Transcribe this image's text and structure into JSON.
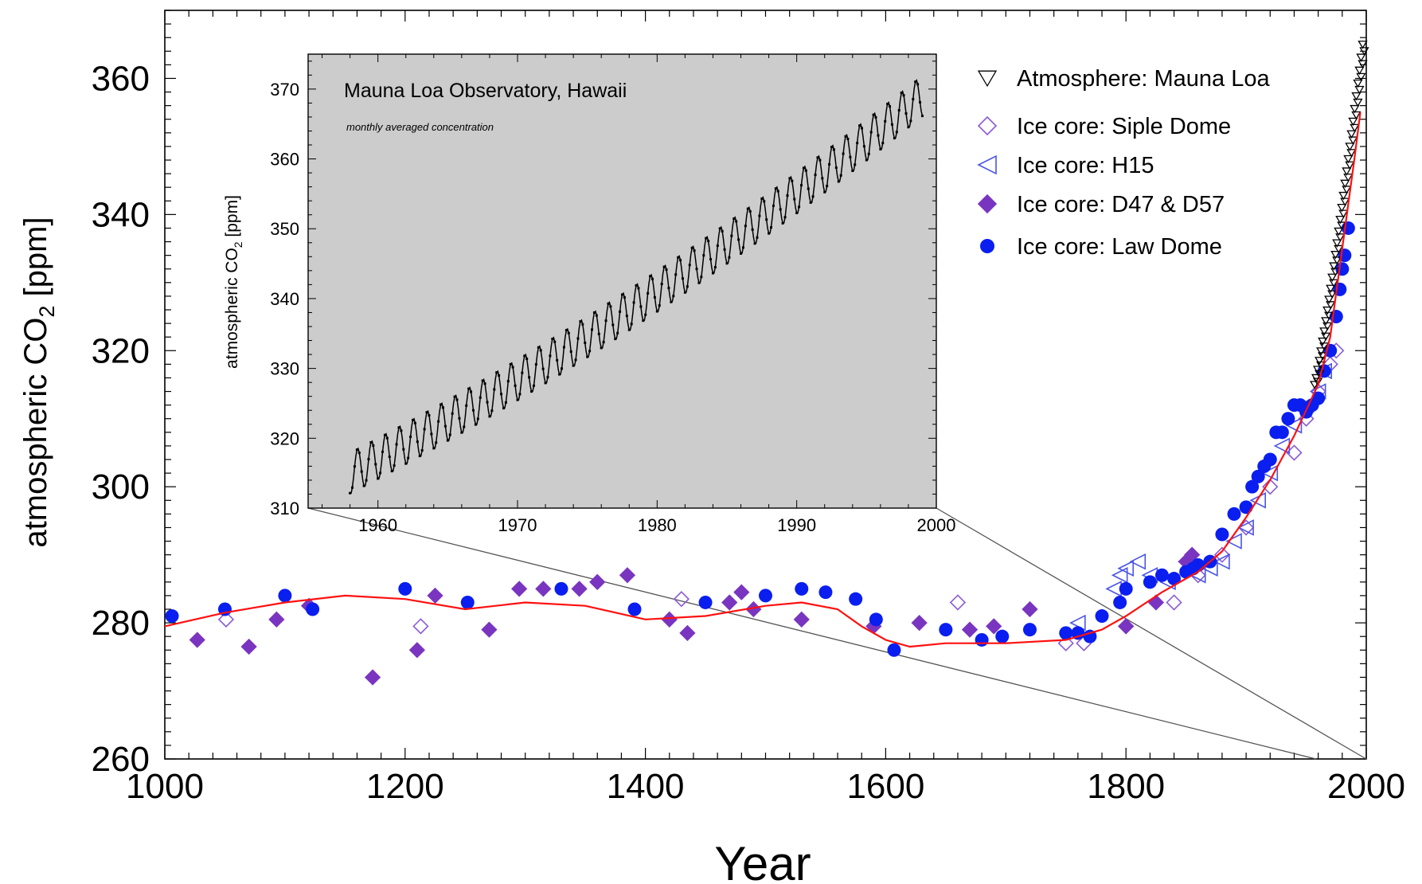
{
  "chart_data": [
    {
      "type": "scatter",
      "title": "",
      "xlabel": "Year",
      "ylabel": "atmospheric CO",
      "ylabel_sub": "2",
      "ylabel_unit": " [ppm]",
      "xlim": [
        1000,
        2000
      ],
      "ylim": [
        260,
        370
      ],
      "xticks": [
        1000,
        1200,
        1400,
        1600,
        1800,
        2000
      ],
      "yticks": [
        260,
        280,
        300,
        320,
        340,
        360
      ],
      "legend_position": "top-right",
      "legend": [
        {
          "label": "Atmosphere: Mauna Loa",
          "marker": "triangle-down-open",
          "color": "#000000"
        },
        {
          "label": "Ice core: Siple Dome",
          "marker": "diamond-open",
          "color": "#8a5bd6"
        },
        {
          "label": "Ice core: H15",
          "marker": "triangle-left-open",
          "color": "#4a55e8"
        },
        {
          "label": "Ice core: D47 & D57",
          "marker": "diamond-filled",
          "color": "#7a35c0"
        },
        {
          "label": "Ice core: Law Dome",
          "marker": "circle-filled",
          "color": "#0a1ef0"
        }
      ],
      "series": [
        {
          "name": "Ice core: Law Dome",
          "marker": "circle-filled",
          "color": "#0a1ef0",
          "x": [
            1006,
            1050,
            1100,
            1123,
            1200,
            1252,
            1330,
            1391,
            1450,
            1500,
            1530,
            1550,
            1575,
            1592,
            1607,
            1650,
            1680,
            1697,
            1720,
            1750,
            1760,
            1770,
            1780,
            1795,
            1800,
            1820,
            1830,
            1840,
            1850,
            1856,
            1860,
            1870,
            1880,
            1890,
            1900,
            1905,
            1910,
            1915,
            1920,
            1925,
            1930,
            1935,
            1940,
            1945,
            1950,
            1955,
            1960,
            1965,
            1970,
            1975,
            1978,
            1980,
            1982,
            1985
          ],
          "y": [
            281,
            282,
            284,
            282,
            285,
            283,
            285,
            282,
            283,
            284,
            285,
            284.5,
            283.5,
            280.5,
            276,
            279,
            277.5,
            278,
            279,
            278.5,
            278.5,
            278,
            281,
            283,
            285,
            286,
            287,
            286.5,
            287.5,
            288,
            288.5,
            289,
            293,
            296,
            297,
            300,
            301.5,
            303,
            304,
            308,
            308,
            310,
            312,
            312,
            311,
            312,
            313,
            317,
            320,
            325,
            329,
            332,
            334,
            338
          ]
        },
        {
          "name": "Ice core: D47 & D57",
          "marker": "diamond-filled",
          "color": "#7a35c0",
          "x": [
            1027,
            1070,
            1093,
            1120,
            1173,
            1210,
            1225,
            1270,
            1295,
            1315,
            1345,
            1360,
            1385,
            1420,
            1435,
            1470,
            1480,
            1490,
            1530,
            1590,
            1628,
            1670,
            1690,
            1720,
            1800,
            1825,
            1850,
            1855
          ],
          "y": [
            277.5,
            276.5,
            280.5,
            282.5,
            272,
            276,
            284,
            279,
            285,
            285,
            285,
            286,
            287,
            280.5,
            278.5,
            283,
            284.5,
            282,
            280.5,
            279.5,
            280,
            279,
            279.5,
            282,
            279.5,
            283,
            289,
            290
          ]
        },
        {
          "name": "Ice core: Siple Dome",
          "marker": "diamond-open",
          "color": "#8a5bd6",
          "x": [
            1051,
            1213,
            1430,
            1660,
            1750,
            1765,
            1800,
            1840,
            1860,
            1880,
            1900,
            1920,
            1940,
            1950,
            1960,
            1970,
            1975
          ],
          "y": [
            280.5,
            279.5,
            283.5,
            283,
            277,
            277,
            279.5,
            283,
            287,
            290,
            294,
            300,
            305,
            310,
            314,
            318,
            320
          ]
        },
        {
          "name": "Ice core: H15",
          "marker": "triangle-left-open",
          "color": "#4a55e8",
          "x": [
            1760,
            1790,
            1795,
            1800,
            1810,
            1820,
            1835,
            1850,
            1860,
            1870,
            1880,
            1890,
            1900,
            1910,
            1920,
            1930,
            1940,
            1950,
            1960,
            1965
          ],
          "y": [
            280,
            285,
            287,
            288,
            289,
            287,
            286,
            289,
            287,
            288,
            289,
            292,
            294,
            298,
            302,
            306,
            309,
            312,
            314,
            317
          ]
        }
      ],
      "spline": {
        "name": "Ice core spline fit",
        "color": "#ff1010",
        "x": [
          1000,
          1050,
          1100,
          1150,
          1200,
          1250,
          1300,
          1350,
          1400,
          1450,
          1500,
          1530,
          1560,
          1580,
          1600,
          1620,
          1650,
          1700,
          1750,
          1780,
          1800,
          1830,
          1860,
          1880,
          1900,
          1920,
          1940,
          1960,
          1970,
          1980,
          1990,
          1995
        ],
        "y": [
          279.5,
          281.5,
          283,
          284,
          283.5,
          282,
          283,
          282.5,
          280.5,
          281,
          282.5,
          283,
          282,
          279.5,
          277.5,
          276.5,
          277,
          277,
          277.5,
          279,
          281,
          284.5,
          287.5,
          290.5,
          295.5,
          301,
          307.5,
          315,
          322,
          335,
          348,
          355
        ]
      },
      "mauna_loa_main": {
        "name": "Atmosphere: Mauna Loa",
        "marker": "triangle-down-open",
        "color": "#000000",
        "x_start": 1958,
        "x_end": 1998,
        "y_start": 315,
        "y_end": 365
      }
    },
    {
      "type": "line",
      "title": "Mauna Loa Observatory, Hawaii",
      "subtitle": "monthly averaged concentration",
      "xlabel": "",
      "ylabel": "atmospheric CO",
      "ylabel_sub": "2",
      "ylabel_unit": " [ppm]",
      "xlim": [
        1955,
        2000
      ],
      "ylim": [
        310,
        375
      ],
      "xticks": [
        1960,
        1970,
        1980,
        1990,
        2000
      ],
      "yticks": [
        310,
        320,
        330,
        340,
        350,
        360,
        370
      ],
      "background": "#cccccc",
      "series": [
        {
          "name": "Atmosphere: Mauna Loa",
          "color": "#000000",
          "x_start": 1958,
          "x_end": 1999,
          "y_start": 315,
          "y_end": 369,
          "seasonal_amplitude": 3
        }
      ]
    }
  ]
}
